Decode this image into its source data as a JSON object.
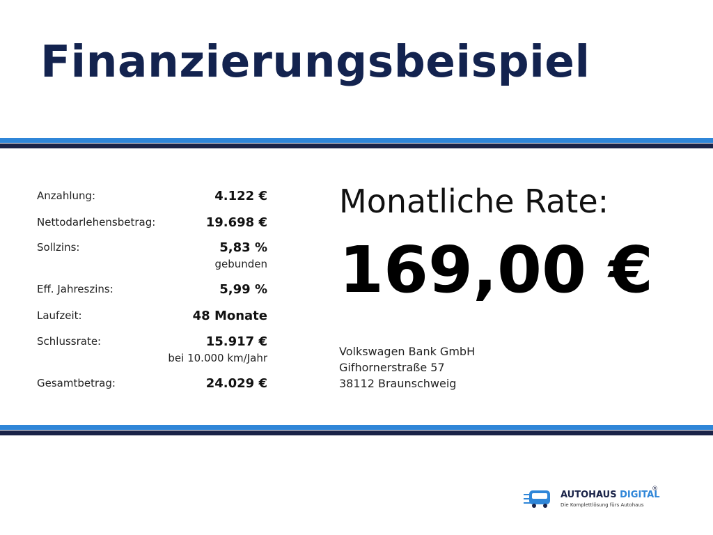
{
  "header": {
    "title": "Finanzierungsbeispiel"
  },
  "table": {
    "rows": [
      {
        "label": "Anzahlung:",
        "value": "4.122 €"
      },
      {
        "label": "Nettodarlehensbetrag:",
        "value": "19.698 €"
      },
      {
        "label": "Sollzins:",
        "value": "5,83 %",
        "note": "gebunden"
      },
      {
        "label": "Eff. Jahreszins:",
        "value": "5,99 %"
      },
      {
        "label": "Laufzeit:",
        "value": "48 Monate"
      },
      {
        "label": "Schlussrate:",
        "value": "15.917 €",
        "note": "bei 10.000 km/Jahr"
      },
      {
        "label": "Gesamtbetrag:",
        "value": "24.029 €"
      }
    ]
  },
  "rate": {
    "label": "Monatliche Rate:",
    "value": "169,00 €"
  },
  "address": {
    "lines": [
      "Volkswagen Bank GmbH",
      "Gifhornerstraße 57",
      "38112 Braunschweig"
    ]
  },
  "logo": {
    "brand": "AUTOHAUS",
    "brand_accent": "DIGITAL",
    "registered": "®",
    "tagline": "Die Komplettlösung fürs Autohaus"
  }
}
